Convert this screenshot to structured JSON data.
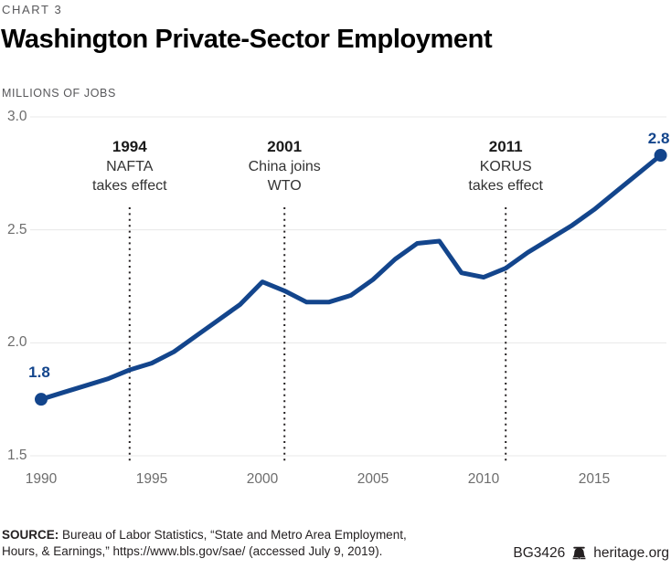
{
  "header": {
    "chart_label": "CHART 3",
    "title": "Washington Private-Sector Employment",
    "unit_label": "MILLIONS OF JOBS"
  },
  "chart_data": {
    "type": "line",
    "title": "Washington Private-Sector Employment",
    "ylabel": "MILLIONS OF JOBS",
    "xlabel": "",
    "ylim": [
      1.5,
      3.0
    ],
    "xlim": [
      1990,
      2018
    ],
    "grid": true,
    "legend": "none",
    "line_color": "#13458c",
    "grid_color": "#e8e8e8",
    "yticks": [
      "3.0",
      "2.5",
      "2.0",
      "1.5"
    ],
    "ytick_values": [
      3.0,
      2.5,
      2.0,
      1.5
    ],
    "xticks": [
      "1990",
      "1995",
      "2000",
      "2005",
      "2010",
      "2015"
    ],
    "xtick_values": [
      1990,
      1995,
      2000,
      2005,
      2010,
      2015
    ],
    "x": [
      1990,
      1991,
      1992,
      1993,
      1994,
      1995,
      1996,
      1997,
      1998,
      1999,
      2000,
      2001,
      2002,
      2003,
      2004,
      2005,
      2006,
      2007,
      2008,
      2009,
      2010,
      2011,
      2012,
      2013,
      2014,
      2015,
      2016,
      2017,
      2018
    ],
    "series": [
      {
        "name": "Washington private-sector employment (millions of jobs)",
        "values": [
          1.75,
          1.78,
          1.81,
          1.84,
          1.88,
          1.91,
          1.96,
          2.03,
          2.1,
          2.17,
          2.27,
          2.23,
          2.18,
          2.18,
          2.21,
          2.28,
          2.37,
          2.44,
          2.45,
          2.31,
          2.29,
          2.33,
          2.4,
          2.46,
          2.52,
          2.59,
          2.67,
          2.75,
          2.83
        ]
      }
    ],
    "start_label": "1.8",
    "end_label": "2.8",
    "annotations": [
      {
        "year": 1994,
        "line1": "1994",
        "line2": "NAFTA",
        "line3": "takes effect"
      },
      {
        "year": 2001,
        "line1": "2001",
        "line2": "China joins",
        "line3": "WTO"
      },
      {
        "year": 2011,
        "line1": "2011",
        "line2": "KORUS",
        "line3": "takes effect"
      }
    ]
  },
  "footer": {
    "source_bold": "SOURCE:",
    "source_rest": " Bureau of Labor Statistics, “State and Metro Area Employment, Hours, & Earnings,” https://www.bls.gov/sae/ (accessed July 9, 2019).",
    "doc_id": "BG3426",
    "site": "heritage.org",
    "bell_icon": "liberty-bell"
  }
}
